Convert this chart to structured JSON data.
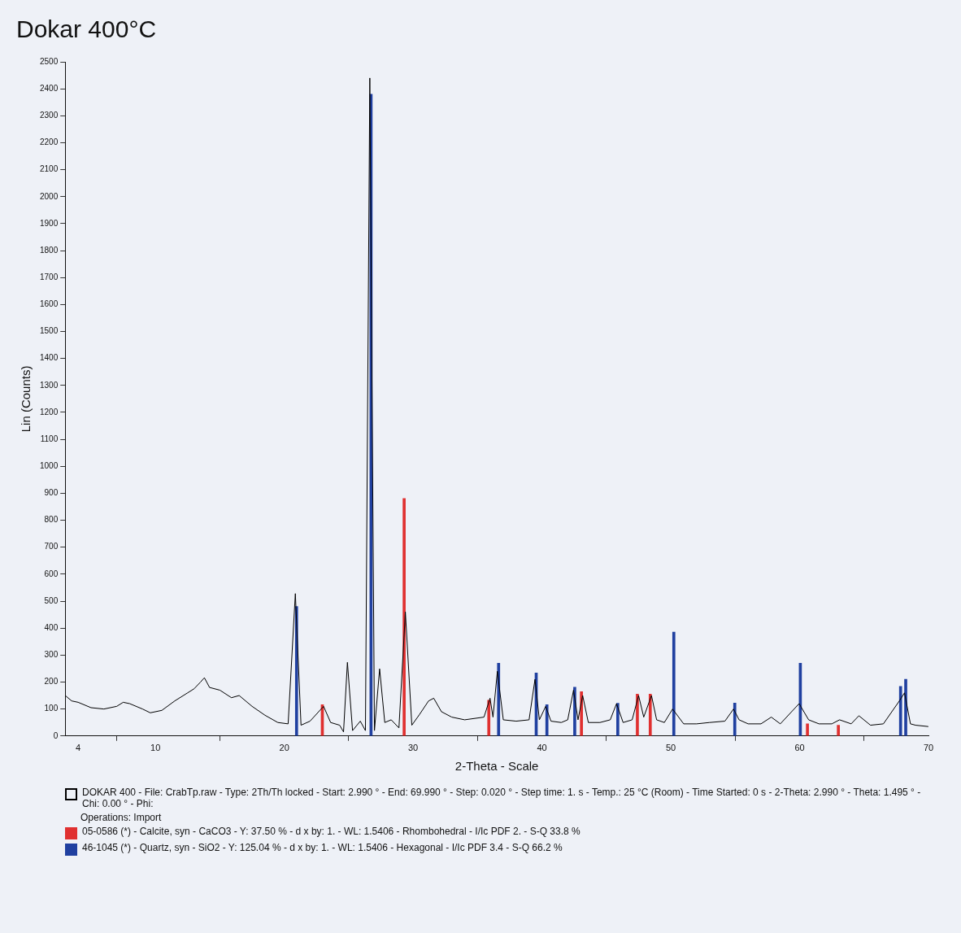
{
  "chart_data": {
    "type": "line",
    "title": "Dokar 400°C",
    "xlabel": "2-Theta - Scale",
    "ylabel": "Lin (Counts)",
    "xlim": [
      3,
      70
    ],
    "xticks": [
      4,
      10,
      20,
      30,
      40,
      50,
      60,
      70
    ],
    "ylim": [
      0,
      2500
    ],
    "yticks": [
      0,
      100,
      200,
      300,
      400,
      500,
      600,
      700,
      800,
      900,
      1000,
      1100,
      1200,
      1300,
      1400,
      1500,
      1600,
      1700,
      1800,
      1900,
      2000,
      2100,
      2200,
      2300,
      2400,
      2500
    ],
    "grid": false,
    "legend": "bottom",
    "marker": "none",
    "line_style": "solid",
    "annotations": [
      "Operations: Import"
    ],
    "series": [
      {
        "name": "DOKAR 400 - File: CrabTp.raw - Type: 2Th/Th locked - Start: 2.990 ° - End: 69.990 ° - Step: 0.020 ° - Step time: 1. s - Temp.: 25 °C (Room) - Time Started: 0 s - 2-Theta: 2.990 ° - Theta: 1.495 ° - Chi: 0.00 ° - Phi:",
        "color": "#000000",
        "x": [
          3,
          3.5,
          4,
          5,
          6,
          7,
          7.5,
          8,
          9,
          9.6,
          10.5,
          11.5,
          12.5,
          13,
          13.5,
          13.8,
          14.2,
          15,
          15.9,
          16.5,
          17.5,
          18.5,
          19.5,
          20.3,
          20.86,
          21.3,
          22,
          23.05,
          23.6,
          24.3,
          24.6,
          24.9,
          25.3,
          25.9,
          26.3,
          26.64,
          27,
          27.4,
          27.8,
          28.3,
          28.9,
          29.4,
          29.9,
          30.5,
          31.2,
          31.6,
          32.2,
          33,
          34,
          35.5,
          35.97,
          36.2,
          36.54,
          37,
          38,
          39,
          39.46,
          39.8,
          40.29,
          40.7,
          41.5,
          42,
          42.45,
          42.8,
          43.16,
          43.6,
          44.5,
          45.3,
          45.79,
          46.3,
          47,
          47.5,
          47.9,
          48.5,
          48.9,
          49.5,
          50.14,
          51,
          52,
          53,
          54.2,
          54.87,
          55.3,
          56,
          57,
          57.8,
          58.5,
          59.96,
          60.7,
          61.5,
          62.5,
          63.1,
          64,
          64.6,
          65.5,
          66.5,
          67.74,
          68.14,
          68.6,
          69,
          69.99
        ],
        "values": [
          150,
          130,
          125,
          105,
          100,
          110,
          125,
          120,
          100,
          86,
          95,
          130,
          160,
          175,
          200,
          216,
          180,
          170,
          142,
          150,
          110,
          77,
          50,
          45,
          528,
          40,
          55,
          110,
          50,
          40,
          15,
          273,
          20,
          55,
          20,
          2440,
          20,
          249,
          50,
          60,
          30,
          460,
          40,
          80,
          130,
          140,
          90,
          70,
          60,
          70,
          140,
          70,
          240,
          60,
          55,
          60,
          210,
          60,
          110,
          55,
          50,
          60,
          170,
          60,
          150,
          50,
          50,
          60,
          120,
          50,
          60,
          150,
          70,
          150,
          60,
          50,
          100,
          45,
          45,
          50,
          55,
          100,
          60,
          45,
          45,
          70,
          45,
          120,
          60,
          45,
          45,
          60,
          45,
          75,
          40,
          45,
          130,
          160,
          45,
          40,
          35
        ]
      },
      {
        "type": "bar",
        "name": "05-0586 (*) - Calcite, syn - CaCO3 - Y: 37.50 % - d x by: 1. - WL: 1.5406 - Rhombohedral - I/Ic PDF 2. - S-Q 33.8 %",
        "color": "#e03030",
        "x": [
          23.05,
          29.4,
          35.97,
          43.16,
          47.5,
          48.5,
          60.7,
          63.1
        ],
        "values": [
          116,
          881,
          133,
          164,
          155,
          155,
          45,
          40
        ]
      },
      {
        "type": "bar",
        "name": "46-1045 (*) - Quartz, syn - SiO2 - Y: 125.04 % - d x by: 1. - WL: 1.5406 - Hexagonal - I/Ic PDF 3.4 - S-Q 66.2 %",
        "color": "#2040a0",
        "x": [
          20.86,
          26.64,
          36.54,
          39.46,
          40.29,
          42.45,
          45.79,
          50.14,
          54.87,
          59.96,
          67.74,
          68.14
        ],
        "values": [
          480,
          2380,
          270,
          234,
          116,
          181,
          121,
          385,
          122,
          270,
          184,
          210
        ]
      }
    ]
  }
}
